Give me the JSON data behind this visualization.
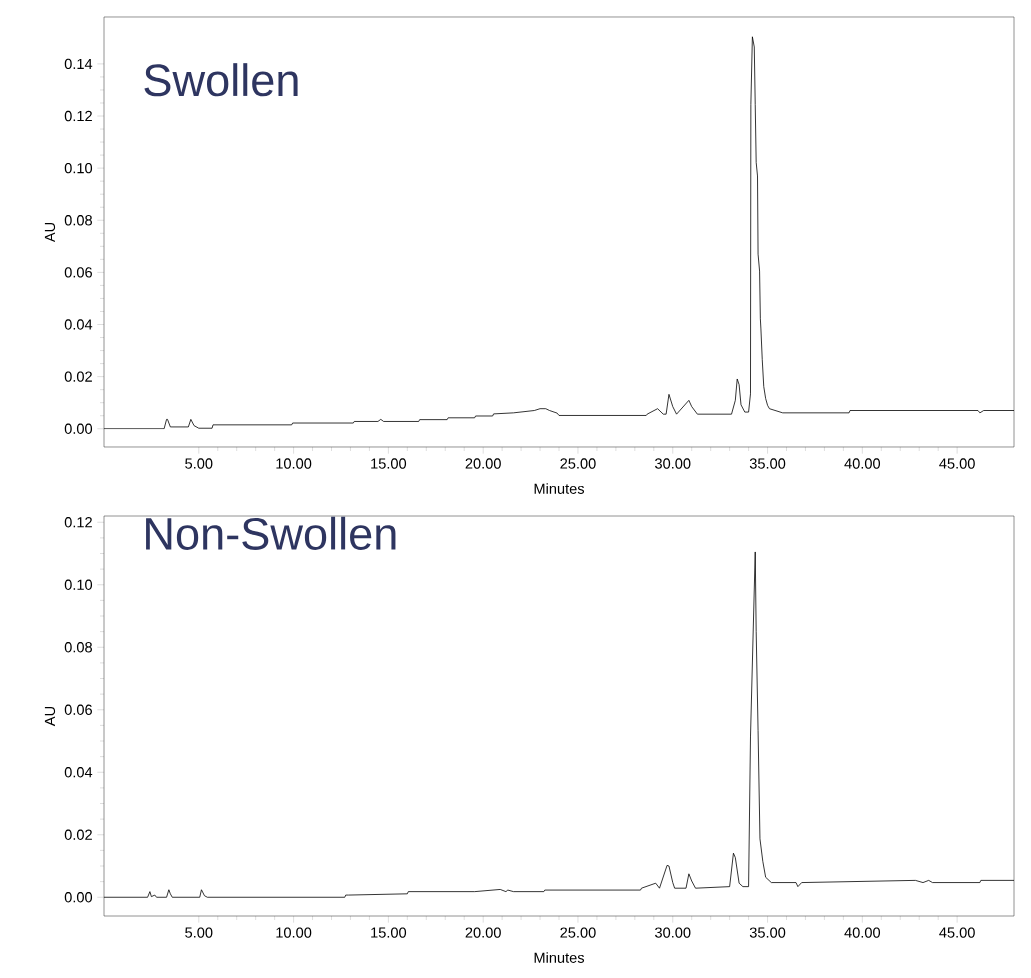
{
  "chart_data": [
    {
      "type": "line",
      "title": "Swollen",
      "xlabel": "Minutes",
      "ylabel": "AU",
      "xlim": [
        0,
        48
      ],
      "ylim": [
        -0.007,
        0.158
      ],
      "xticks": [
        {
          "value": 5,
          "label": "5.00"
        },
        {
          "value": 10,
          "label": "10.00"
        },
        {
          "value": 15,
          "label": "15.00"
        },
        {
          "value": 20,
          "label": "20.00"
        },
        {
          "value": 25,
          "label": "25.00"
        },
        {
          "value": 30,
          "label": "30.00"
        },
        {
          "value": 35,
          "label": "35.00"
        },
        {
          "value": 40,
          "label": "40.00"
        },
        {
          "value": 45,
          "label": "45.00"
        }
      ],
      "yticks": [
        {
          "value": 0,
          "label": "0.00"
        },
        {
          "value": 0.02,
          "label": "0.02"
        },
        {
          "value": 0.04,
          "label": "0.04"
        },
        {
          "value": 0.06,
          "label": "0.06"
        },
        {
          "value": 0.08,
          "label": "0.08"
        },
        {
          "value": 0.1,
          "label": "0.10"
        },
        {
          "value": 0.12,
          "label": "0.12"
        },
        {
          "value": 0.14,
          "label": "0.14"
        }
      ],
      "x": [
        0,
        3.17,
        3.3,
        3.35,
        3.5,
        4.45,
        4.58,
        4.75,
        5.0,
        5.7,
        5.75,
        9.9,
        9.95,
        13.15,
        13.2,
        14.45,
        14.6,
        14.75,
        16.6,
        16.65,
        18.1,
        18.15,
        19.55,
        19.6,
        20.5,
        20.55,
        21.6,
        22.7,
        23.0,
        23.3,
        23.5,
        23.9,
        24.0,
        28.6,
        28.65,
        29.2,
        29.5,
        29.65,
        29.8,
        30.0,
        30.2,
        30.85,
        31.0,
        31.3,
        33.1,
        33.3,
        33.4,
        33.5,
        33.6,
        33.8,
        34.0,
        34.1,
        34.12,
        34.2,
        34.3,
        34.35,
        34.4,
        34.47,
        34.5,
        34.58,
        34.62,
        34.65,
        34.72,
        34.8,
        34.9,
        35.0,
        35.1,
        35.8,
        39.3,
        39.35,
        46.1,
        46.2,
        46.4,
        48
      ],
      "series": [
        {
          "color": "#000000",
          "values": [
            0,
            0,
            0.0036,
            0.0036,
            0.0007,
            0.0007,
            0.0036,
            0.0012,
            0.0002,
            0.0002,
            0.0015,
            0.0015,
            0.0022,
            0.0022,
            0.0028,
            0.0028,
            0.0036,
            0.0028,
            0.0028,
            0.0035,
            0.0035,
            0.0042,
            0.0042,
            0.0049,
            0.0049,
            0.0057,
            0.0061,
            0.007,
            0.0077,
            0.0077,
            0.007,
            0.006,
            0.0051,
            0.0051,
            0.0056,
            0.0077,
            0.0056,
            0.0056,
            0.0132,
            0.0085,
            0.0056,
            0.0109,
            0.0085,
            0.0056,
            0.0056,
            0.0109,
            0.0191,
            0.0169,
            0.0092,
            0.0064,
            0.0064,
            0.0134,
            0.1244,
            0.1504,
            0.1465,
            0.1244,
            0.1022,
            0.097,
            0.067,
            0.0605,
            0.0422,
            0.0383,
            0.0266,
            0.0162,
            0.0116,
            0.009,
            0.0077,
            0.0061,
            0.0061,
            0.007,
            0.007,
            0.0061,
            0.007,
            0.007
          ]
        }
      ]
    },
    {
      "type": "line",
      "title": "Non-Swollen",
      "xlabel": "Minutes",
      "ylabel": "AU",
      "xlim": [
        0,
        48
      ],
      "ylim": [
        -0.006,
        0.122
      ],
      "xticks": [
        {
          "value": 5,
          "label": "5.00"
        },
        {
          "value": 10,
          "label": "10.00"
        },
        {
          "value": 15,
          "label": "15.00"
        },
        {
          "value": 20,
          "label": "20.00"
        },
        {
          "value": 25,
          "label": "25.00"
        },
        {
          "value": 30,
          "label": "30.00"
        },
        {
          "value": 35,
          "label": "35.00"
        },
        {
          "value": 40,
          "label": "40.00"
        },
        {
          "value": 45,
          "label": "45.00"
        }
      ],
      "yticks": [
        {
          "value": 0,
          "label": "0.00"
        },
        {
          "value": 0.02,
          "label": "0.02"
        },
        {
          "value": 0.04,
          "label": "0.04"
        },
        {
          "value": 0.06,
          "label": "0.06"
        },
        {
          "value": 0.08,
          "label": "0.08"
        },
        {
          "value": 0.1,
          "label": "0.10"
        },
        {
          "value": 0.12,
          "label": "0.12"
        }
      ],
      "x": [
        0,
        2.3,
        2.42,
        2.5,
        2.68,
        2.77,
        3.3,
        3.42,
        3.5,
        3.6,
        5.05,
        5.14,
        5.3,
        5.45,
        12.7,
        12.75,
        12.9,
        16.0,
        16.05,
        19.5,
        19.55,
        20.9,
        21.2,
        21.3,
        21.6,
        23.2,
        23.25,
        28.3,
        28.35,
        29.1,
        29.3,
        29.7,
        29.8,
        30.0,
        30.1,
        30.7,
        30.85,
        31.0,
        31.2,
        33.0,
        33.2,
        33.3,
        33.5,
        33.7,
        34.0,
        34.1,
        34.15,
        34.25,
        34.35,
        34.4,
        34.5,
        34.6,
        34.75,
        34.9,
        35.2,
        36.5,
        36.6,
        36.8,
        42.8,
        43.2,
        43.5,
        43.7,
        46.2,
        46.25,
        48
      ],
      "series": [
        {
          "color": "#000000",
          "values": [
            0,
            0,
            0.0018,
            0.0002,
            0.0007,
            0,
            0,
            0.0024,
            0.0011,
            0,
            0,
            0.0024,
            0.0005,
            0,
            0,
            0.0007,
            0.0007,
            0.0011,
            0.0018,
            0.0018,
            0.0018,
            0.0025,
            0.0018,
            0.0023,
            0.0018,
            0.0018,
            0.0023,
            0.0023,
            0.0029,
            0.0045,
            0.0029,
            0.0102,
            0.01,
            0.0047,
            0.0029,
            0.0029,
            0.0075,
            0.0052,
            0.0029,
            0.0034,
            0.0141,
            0.0127,
            0.0045,
            0.0034,
            0.0034,
            0.0513,
            null,
            null,
            0.1105,
            0.085,
            0.0534,
            0.0187,
            0.0115,
            0.0064,
            0.0047,
            0.0047,
            0.0034,
            0.0047,
            0.0054,
            0.0047,
            0.0054,
            0.0047,
            0.0047,
            0.0054,
            0.0054
          ]
        }
      ]
    }
  ]
}
